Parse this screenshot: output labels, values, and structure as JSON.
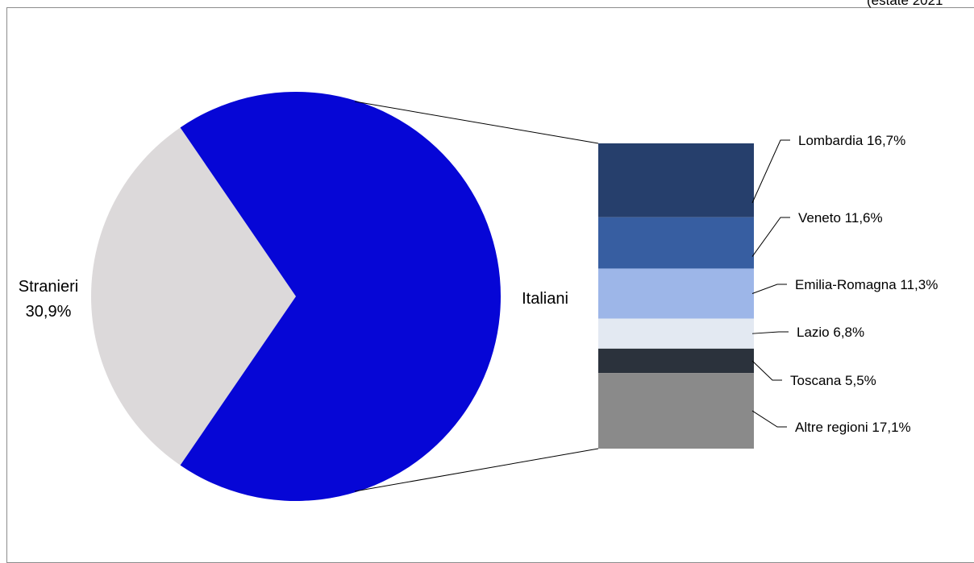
{
  "chart_data": {
    "type": "pie",
    "subtitle": "(estate 2021",
    "pie": {
      "slices": [
        {
          "label": "Stranieri",
          "value_label": "30,9%",
          "value": 30.9,
          "color": "#dcd9da"
        },
        {
          "label": "Italiani",
          "value": 69.1,
          "color": "#0606d6"
        }
      ]
    },
    "breakdown": {
      "parent": "Italiani",
      "segments": [
        {
          "label": "Lombardia 16,7%",
          "value": 16.7,
          "color": "#263f6c"
        },
        {
          "label": "Veneto 11,6%",
          "value": 11.6,
          "color": "#375ea1"
        },
        {
          "label": "Emilia-Romagna 11,3%",
          "value": 11.3,
          "color": "#9db6e8"
        },
        {
          "label": "Lazio 6,8%",
          "value": 6.8,
          "color": "#e3e9f2"
        },
        {
          "label": "Toscana 5,5%",
          "value": 5.5,
          "color": "#2b323c"
        },
        {
          "label": "Altre regioni 17,1%",
          "value": 17.1,
          "color": "#8a8a8a"
        }
      ]
    }
  }
}
